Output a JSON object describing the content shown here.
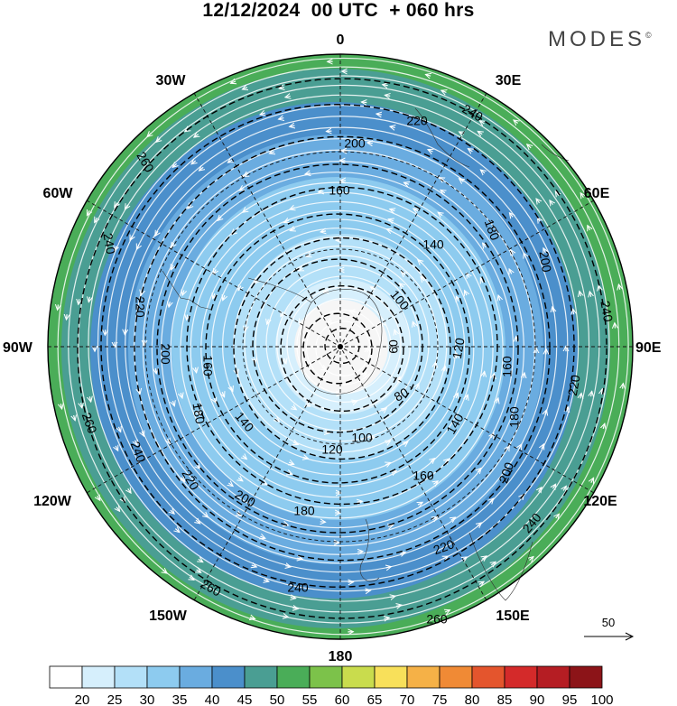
{
  "title": "12/12/2024  00 UTC  + 060 hrs",
  "brand": "MODES",
  "brand_mark": "©",
  "longitude_labels": {
    "n": "0",
    "ne1": "30E",
    "ne2": "60E",
    "e": "90E",
    "se1": "120E",
    "se2": "150E",
    "s": "180",
    "sw2": "150W",
    "sw1": "120W",
    "w": "90W",
    "nw2": "60W",
    "nw1": "30W"
  },
  "contours": [
    60,
    80,
    100,
    120,
    140,
    160,
    180,
    200,
    220,
    240,
    260
  ],
  "contour_labels": [
    {
      "text": "200",
      "name": "contour-label-200-n"
    },
    {
      "text": "220",
      "name": "contour-label-220-ne"
    },
    {
      "text": "240",
      "name": "contour-label-240-ne"
    },
    {
      "text": "160",
      "name": "contour-label-160-n"
    },
    {
      "text": "180",
      "name": "contour-label-180-ne"
    },
    {
      "text": "140",
      "name": "contour-label-140-ne"
    },
    {
      "text": "200",
      "name": "contour-label-200-e"
    },
    {
      "text": "240",
      "name": "contour-label-240-e"
    },
    {
      "text": "100",
      "name": "contour-label-100-e"
    },
    {
      "text": "60",
      "name": "contour-label-60"
    },
    {
      "text": "120",
      "name": "contour-label-120-e"
    },
    {
      "text": "160",
      "name": "contour-label-160-e"
    },
    {
      "text": "220",
      "name": "contour-label-220-e"
    },
    {
      "text": "80",
      "name": "contour-label-80"
    },
    {
      "text": "180",
      "name": "contour-label-180-e"
    },
    {
      "text": "140",
      "name": "contour-label-140-se"
    },
    {
      "text": "200",
      "name": "contour-label-200-se"
    },
    {
      "text": "160",
      "name": "contour-label-160-se"
    },
    {
      "text": "240",
      "name": "contour-label-240-se"
    },
    {
      "text": "220",
      "name": "contour-label-220-se"
    },
    {
      "text": "260",
      "name": "contour-label-260-s"
    },
    {
      "text": "240",
      "name": "contour-label-240-s"
    },
    {
      "text": "100",
      "name": "contour-label-100-s"
    },
    {
      "text": "120",
      "name": "contour-label-120-s"
    },
    {
      "text": "180",
      "name": "contour-label-180-s"
    },
    {
      "text": "260",
      "name": "contour-label-260-sw"
    },
    {
      "text": "200",
      "name": "contour-label-200-sw"
    },
    {
      "text": "220",
      "name": "contour-label-220-sw"
    },
    {
      "text": "240",
      "name": "contour-label-240-sw"
    },
    {
      "text": "260",
      "name": "contour-label-260-w"
    },
    {
      "text": "180",
      "name": "contour-label-180-w"
    },
    {
      "text": "140",
      "name": "contour-label-140-w"
    },
    {
      "text": "160",
      "name": "contour-label-160-w"
    },
    {
      "text": "200",
      "name": "contour-label-200-w"
    },
    {
      "text": "220",
      "name": "contour-label-220-w"
    },
    {
      "text": "240",
      "name": "contour-label-240-w"
    },
    {
      "text": "260",
      "name": "contour-label-260-nw"
    }
  ],
  "wind_reference": {
    "label": "50"
  },
  "colorbar": {
    "ticks": [
      "20",
      "25",
      "30",
      "35",
      "40",
      "45",
      "50",
      "55",
      "60",
      "65",
      "70",
      "75",
      "80",
      "85",
      "90",
      "95",
      "100"
    ],
    "colors": [
      "#ffffff",
      "#d6effc",
      "#b3e0f8",
      "#8dcbef",
      "#6aace0",
      "#4b8fcb",
      "#4a9e93",
      "#4aad58",
      "#7cc24a",
      "#c9dc4d",
      "#f8e05a",
      "#f5b147",
      "#f08a35",
      "#e4552d",
      "#d42a2a",
      "#b51d23",
      "#8c1418"
    ]
  }
}
